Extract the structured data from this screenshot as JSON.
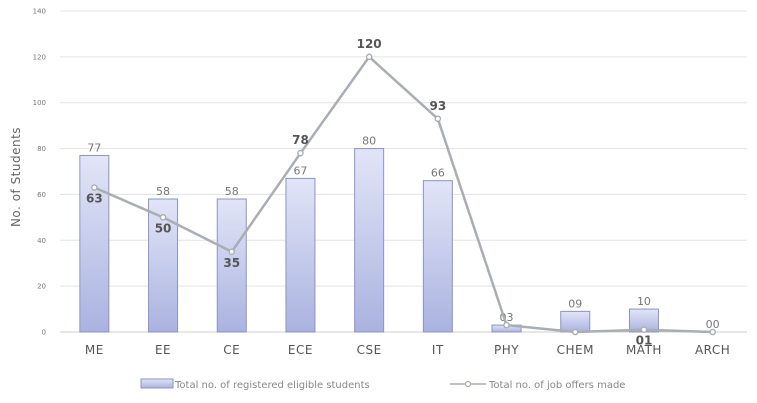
{
  "chart_data": {
    "type": "bar",
    "categories": [
      "ME",
      "EE",
      "CE",
      "ECE",
      "CSE",
      "IT",
      "PHY",
      "CHEM",
      "MATH",
      "ARCH"
    ],
    "ylabel": "No. of Students",
    "xlabel": "",
    "ylim": [
      0,
      140
    ],
    "yticks": [
      0,
      20,
      40,
      60,
      80,
      100,
      120,
      140
    ],
    "grid": true,
    "legend_position": "bottom",
    "series": [
      {
        "name": "Total no. of registered eligible students",
        "type": "bar",
        "values": [
          77,
          58,
          58,
          67,
          80,
          66,
          3,
          9,
          10,
          0
        ],
        "labels": [
          "77",
          "58",
          "58",
          "67",
          "80",
          "66",
          "03",
          "09",
          "10",
          "00"
        ],
        "color": "#c7cdee"
      },
      {
        "name": "Total no. of job offers made",
        "type": "line",
        "values": [
          63,
          50,
          35,
          78,
          120,
          93,
          3,
          0,
          1,
          0
        ],
        "labels": [
          "63",
          "50",
          "35",
          "78",
          "120",
          "93",
          "",
          "",
          "01",
          ""
        ],
        "color": "#a9aeb5"
      }
    ]
  }
}
